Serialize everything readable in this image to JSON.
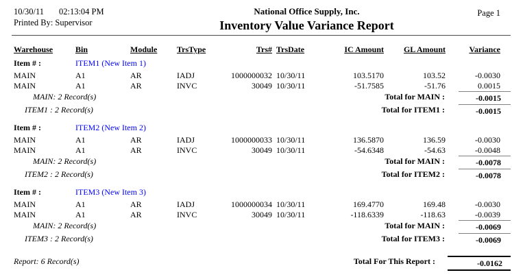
{
  "header": {
    "date": "10/30/11",
    "time": "02:13:04 PM",
    "printed_by": "Printed By: Supervisor",
    "company": "National Office Supply, Inc.",
    "title": "Inventory Value Variance Report",
    "page": "Page 1"
  },
  "colors": {
    "item_link_blue": "#0000ff",
    "subtotal_rule_gray": "#808080",
    "report_rule_black": "#000000"
  },
  "columns": [
    "Warehouse",
    "Bin",
    "Module",
    "TrsType",
    "Trs#",
    "TrsDate",
    "IC Amount",
    "GL Amount",
    "Variance"
  ],
  "item_label": "Item # :",
  "groups": [
    {
      "item": "ITEM1 (New Item 1)",
      "rows": [
        {
          "warehouse": "MAIN",
          "bin": "A1",
          "module": "AR",
          "trs_type": "IADJ",
          "trs_no": "1000000032",
          "trs_date": "10/30/11",
          "ic_amount": "103.5170",
          "gl_amount": "103.52",
          "variance": "-0.0030"
        },
        {
          "warehouse": "MAIN",
          "bin": "A1",
          "module": "AR",
          "trs_type": "INVC",
          "trs_no": "30049",
          "trs_date": "10/30/11",
          "ic_amount": "-51.7585",
          "gl_amount": "-51.76",
          "variance": "0.0015"
        }
      ],
      "warehouse_summary": {
        "records": "MAIN: 2 Record(s)",
        "total_label": "Total for MAIN :",
        "total": "-0.0015"
      },
      "item_summary": {
        "records": "ITEM1 : 2 Record(s)",
        "total_label": "Total for ITEM1 :",
        "total": "-0.0015"
      }
    },
    {
      "item": "ITEM2 (New Item 2)",
      "rows": [
        {
          "warehouse": "MAIN",
          "bin": "A1",
          "module": "AR",
          "trs_type": "IADJ",
          "trs_no": "1000000033",
          "trs_date": "10/30/11",
          "ic_amount": "136.5870",
          "gl_amount": "136.59",
          "variance": "-0.0030"
        },
        {
          "warehouse": "MAIN",
          "bin": "A1",
          "module": "AR",
          "trs_type": "INVC",
          "trs_no": "30049",
          "trs_date": "10/30/11",
          "ic_amount": "-54.6348",
          "gl_amount": "-54.63",
          "variance": "-0.0048"
        }
      ],
      "warehouse_summary": {
        "records": "MAIN: 2 Record(s)",
        "total_label": "Total for MAIN :",
        "total": "-0.0078"
      },
      "item_summary": {
        "records": "ITEM2 : 2 Record(s)",
        "total_label": "Total for ITEM2 :",
        "total": "-0.0078"
      }
    },
    {
      "item": "ITEM3 (New Item 3)",
      "rows": [
        {
          "warehouse": "MAIN",
          "bin": "A1",
          "module": "AR",
          "trs_type": "IADJ",
          "trs_no": "1000000034",
          "trs_date": "10/30/11",
          "ic_amount": "169.4770",
          "gl_amount": "169.48",
          "variance": "-0.0030"
        },
        {
          "warehouse": "MAIN",
          "bin": "A1",
          "module": "AR",
          "trs_type": "INVC",
          "trs_no": "30049",
          "trs_date": "10/30/11",
          "ic_amount": "-118.6339",
          "gl_amount": "-118.63",
          "variance": "-0.0039"
        }
      ],
      "warehouse_summary": {
        "records": "MAIN: 2 Record(s)",
        "total_label": "Total for MAIN :",
        "total": "-0.0069"
      },
      "item_summary": {
        "records": "ITEM3 : 2 Record(s)",
        "total_label": "Total for ITEM3 :",
        "total": "-0.0069"
      }
    }
  ],
  "report_summary": {
    "records": "Report: 6 Record(s)",
    "total_label": "Total For This Report :",
    "total": "-0.0162"
  }
}
